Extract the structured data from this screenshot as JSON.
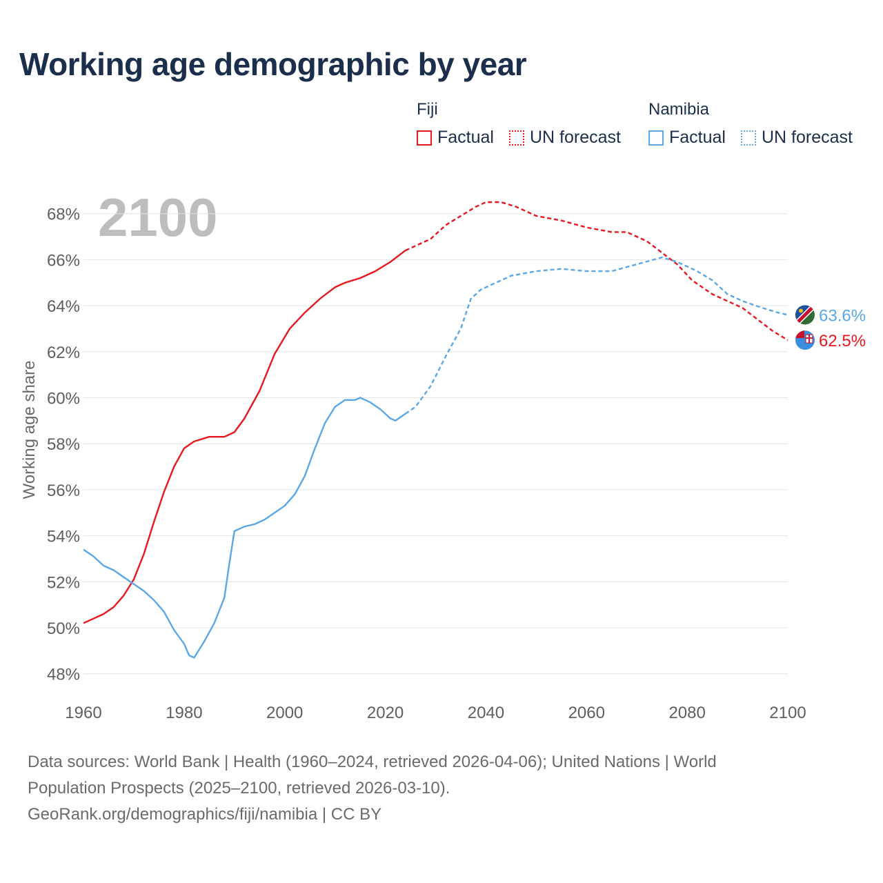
{
  "title": "Working age demographic by year",
  "legend": {
    "groups": [
      {
        "name": "Fiji",
        "color": "#e8171f",
        "factual_label": "Factual",
        "forecast_label": "UN forecast"
      },
      {
        "name": "Namibia",
        "color": "#5aa7e6",
        "factual_label": "Factual",
        "forecast_label": "UN forecast"
      }
    ]
  },
  "year_watermark": "2100",
  "footer": {
    "line1": "Data sources: World Bank | Health (1960–2024, retrieved 2026-04-06); United Nations | World",
    "line2": "Population Prospects (2025–2100, retrieved 2026-03-10).",
    "line3": "GeoRank.org/demographics/fiji/namibia | CC BY"
  },
  "chart_data": {
    "type": "line",
    "title": "Working age demographic by year",
    "xlabel": "",
    "ylabel": "Working age share",
    "xlim": [
      1960,
      2100
    ],
    "ylim": [
      47,
      70
    ],
    "x_ticks": [
      1960,
      1980,
      2000,
      2020,
      2040,
      2060,
      2080,
      2100
    ],
    "y_ticks": [
      48,
      50,
      52,
      54,
      56,
      58,
      60,
      62,
      64,
      66,
      68
    ],
    "y_tick_labels": [
      "48%",
      "50%",
      "52%",
      "54%",
      "56%",
      "58%",
      "60%",
      "62%",
      "64%",
      "66%",
      "68%"
    ],
    "x_tick_labels": [
      "1960",
      "1980",
      "2000",
      "2020",
      "2040",
      "2060",
      "2080",
      "2100"
    ],
    "forecast_start": 2024,
    "series": [
      {
        "name": "Fiji",
        "color": "#e8171f",
        "end_label": "62.5%",
        "points": [
          [
            1960,
            50.2
          ],
          [
            1962,
            50.4
          ],
          [
            1964,
            50.6
          ],
          [
            1966,
            50.9
          ],
          [
            1968,
            51.4
          ],
          [
            1970,
            52.1
          ],
          [
            1972,
            53.2
          ],
          [
            1974,
            54.6
          ],
          [
            1976,
            55.9
          ],
          [
            1978,
            57.0
          ],
          [
            1980,
            57.8
          ],
          [
            1982,
            58.1
          ],
          [
            1985,
            58.3
          ],
          [
            1988,
            58.3
          ],
          [
            1990,
            58.5
          ],
          [
            1992,
            59.1
          ],
          [
            1995,
            60.3
          ],
          [
            1998,
            61.9
          ],
          [
            2001,
            63.0
          ],
          [
            2004,
            63.7
          ],
          [
            2007,
            64.3
          ],
          [
            2010,
            64.8
          ],
          [
            2012,
            65.0
          ],
          [
            2015,
            65.2
          ],
          [
            2018,
            65.5
          ],
          [
            2021,
            65.9
          ],
          [
            2024,
            66.4
          ],
          [
            2026,
            66.6
          ],
          [
            2029,
            66.9
          ],
          [
            2032,
            67.5
          ],
          [
            2035,
            67.9
          ],
          [
            2038,
            68.3
          ],
          [
            2040,
            68.5
          ],
          [
            2043,
            68.5
          ],
          [
            2046,
            68.3
          ],
          [
            2050,
            67.9
          ],
          [
            2055,
            67.7
          ],
          [
            2060,
            67.4
          ],
          [
            2065,
            67.2
          ],
          [
            2068,
            67.2
          ],
          [
            2072,
            66.8
          ],
          [
            2075,
            66.3
          ],
          [
            2078,
            65.8
          ],
          [
            2081,
            65.1
          ],
          [
            2085,
            64.5
          ],
          [
            2088,
            64.2
          ],
          [
            2091,
            63.9
          ],
          [
            2094,
            63.4
          ],
          [
            2097,
            62.9
          ],
          [
            2100,
            62.5
          ]
        ]
      },
      {
        "name": "Namibia",
        "color": "#5aa7e6",
        "end_label": "63.6%",
        "points": [
          [
            1960,
            53.4
          ],
          [
            1962,
            53.1
          ],
          [
            1964,
            52.7
          ],
          [
            1966,
            52.5
          ],
          [
            1968,
            52.2
          ],
          [
            1970,
            51.9
          ],
          [
            1972,
            51.6
          ],
          [
            1974,
            51.2
          ],
          [
            1976,
            50.7
          ],
          [
            1978,
            49.9
          ],
          [
            1980,
            49.3
          ],
          [
            1981,
            48.8
          ],
          [
            1982,
            48.7
          ],
          [
            1984,
            49.4
          ],
          [
            1986,
            50.2
          ],
          [
            1988,
            51.3
          ],
          [
            1989,
            52.8
          ],
          [
            1990,
            54.2
          ],
          [
            1992,
            54.4
          ],
          [
            1994,
            54.5
          ],
          [
            1996,
            54.7
          ],
          [
            1998,
            55.0
          ],
          [
            2000,
            55.3
          ],
          [
            2002,
            55.8
          ],
          [
            2004,
            56.6
          ],
          [
            2006,
            57.8
          ],
          [
            2008,
            58.9
          ],
          [
            2010,
            59.6
          ],
          [
            2012,
            59.9
          ],
          [
            2014,
            59.9
          ],
          [
            2015,
            60.0
          ],
          [
            2017,
            59.8
          ],
          [
            2019,
            59.5
          ],
          [
            2021,
            59.1
          ],
          [
            2022,
            59.0
          ],
          [
            2024,
            59.3
          ],
          [
            2026,
            59.6
          ],
          [
            2029,
            60.5
          ],
          [
            2032,
            61.8
          ],
          [
            2035,
            63.0
          ],
          [
            2037,
            64.3
          ],
          [
            2039,
            64.7
          ],
          [
            2042,
            65.0
          ],
          [
            2045,
            65.3
          ],
          [
            2050,
            65.5
          ],
          [
            2055,
            65.6
          ],
          [
            2060,
            65.5
          ],
          [
            2065,
            65.5
          ],
          [
            2070,
            65.8
          ],
          [
            2075,
            66.1
          ],
          [
            2078,
            65.9
          ],
          [
            2082,
            65.5
          ],
          [
            2085,
            65.1
          ],
          [
            2088,
            64.5
          ],
          [
            2091,
            64.2
          ],
          [
            2095,
            63.9
          ],
          [
            2098,
            63.7
          ],
          [
            2100,
            63.6
          ]
        ]
      }
    ]
  }
}
